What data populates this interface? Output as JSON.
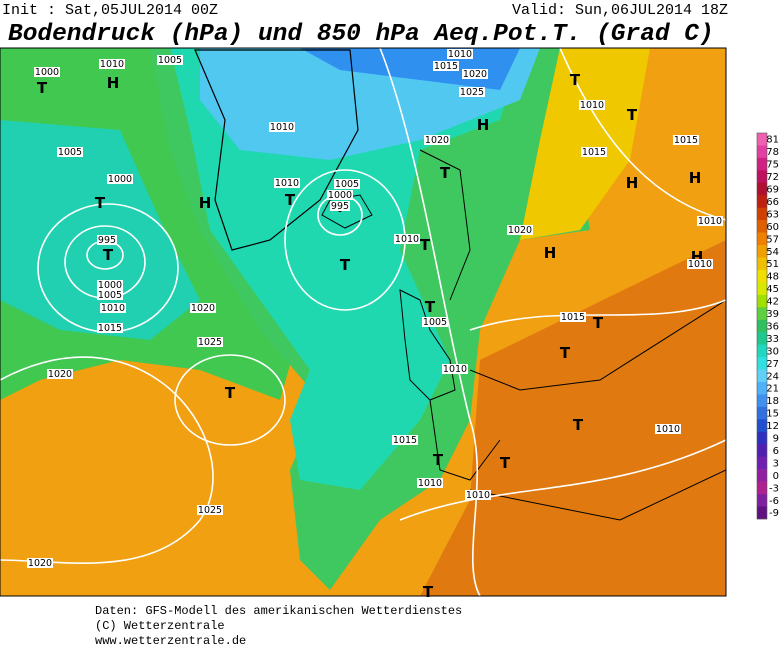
{
  "header": {
    "init": "Init : Sat,05JUL2014 00Z",
    "valid": "Valid: Sun,06JUL2014 18Z",
    "title": "Bodendruck (hPa) und 850 hPa Aeq.Pot.T. (Grad C)"
  },
  "colorbar": {
    "labels": [
      "81",
      "78",
      "75",
      "72",
      "69",
      "66",
      "63",
      "60",
      "57",
      "54",
      "51",
      "48",
      "45",
      "42",
      "39",
      "36",
      "33",
      "30",
      "27",
      "24",
      "21",
      "18",
      "15",
      "12",
      "9",
      "6",
      "3",
      "0",
      "-3",
      "-6",
      "-9"
    ],
    "colors": [
      "#f060b0",
      "#e040a0",
      "#d02080",
      "#c01060",
      "#b01030",
      "#c02010",
      "#d04000",
      "#e06000",
      "#f08000",
      "#f0a000",
      "#f0c000",
      "#f0e000",
      "#d8e800",
      "#a0e000",
      "#60d040",
      "#30c060",
      "#20c890",
      "#20d8c0",
      "#30e0e0",
      "#60d0f8",
      "#50b0f8",
      "#4090f0",
      "#3070e0",
      "#2050d0",
      "#3030c0",
      "#5020b0",
      "#7020b0",
      "#9020a0",
      "#b02090",
      "#8020a0",
      "#601080"
    ]
  },
  "map_labels": {
    "centers": [
      "H",
      "T",
      "T",
      "H",
      "T",
      "T",
      "T",
      "H",
      "H",
      "H",
      "T",
      "T",
      "T",
      "T",
      "T",
      "T",
      "T",
      "T",
      "T",
      "T",
      "T",
      "T",
      "H",
      "H",
      "T"
    ],
    "isobars": [
      "1000",
      "1010",
      "1005",
      "1005",
      "1000",
      "995",
      "1000",
      "1005",
      "1010",
      "1015",
      "1020",
      "1025",
      "1020",
      "1025",
      "1020",
      "1010",
      "1010",
      "1005",
      "1000",
      "995",
      "1010",
      "1020",
      "1025",
      "1020",
      "1015",
      "1010",
      "1010",
      "1015",
      "1015",
      "1010",
      "1010",
      "1020",
      "1015",
      "1005",
      "1010",
      "1015",
      "1010",
      "1010",
      "1010"
    ]
  },
  "footer": [
    "Daten: GFS-Modell des amerikanischen Wetterdienstes",
    "(C) Wetterzentrale",
    "www.wetterzentrale.de"
  ]
}
